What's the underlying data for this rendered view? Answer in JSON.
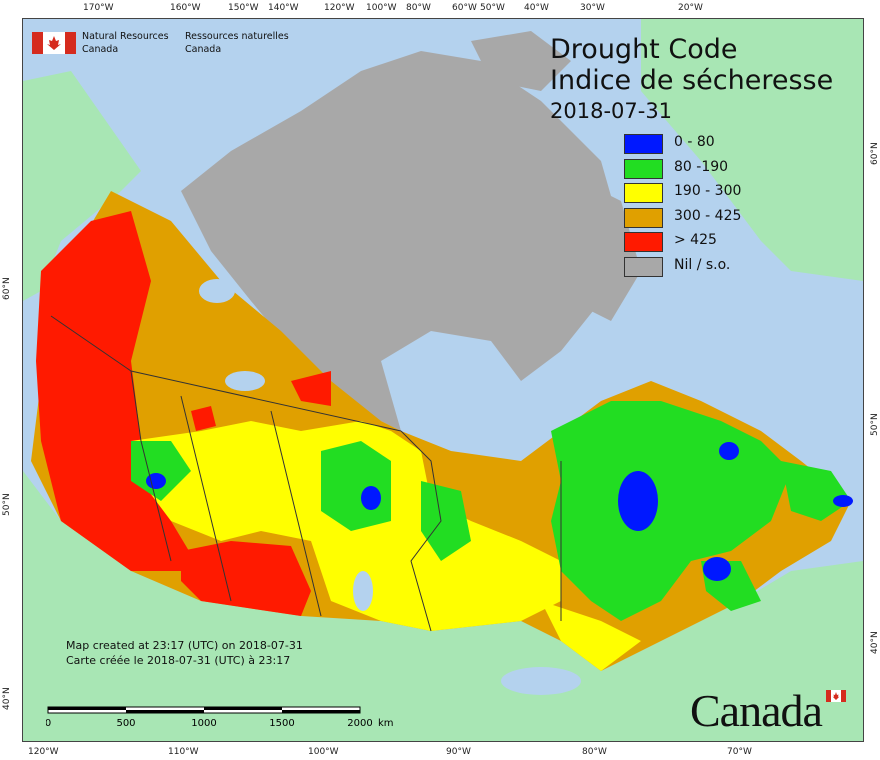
{
  "brand": {
    "name_en_line1": "Natural Resources",
    "name_en_line2": "Canada",
    "name_fr_line1": "Ressources naturelles",
    "name_fr_line2": "Canada"
  },
  "title": {
    "line_en": "Drought Code",
    "line_fr": "Indice de sécheresse",
    "date": "2018-07-31"
  },
  "legend": [
    {
      "label": "0 - 80",
      "color": "#0018ff"
    },
    {
      "label": "80 -190",
      "color": "#22dd22"
    },
    {
      "label": "190 - 300",
      "color": "#ffff00"
    },
    {
      "label": "300 - 425",
      "color": "#e0a000"
    },
    {
      "label": "> 425",
      "color": "#ff1a00"
    },
    {
      "label": "Nil / s.o.",
      "color": "#a8a8a8"
    }
  ],
  "credit": {
    "line_en": "Map created at 23:17 (UTC) on 2018-07-31",
    "line_fr": "Carte créée le 2018-07-31 (UTC) à 23:17"
  },
  "scale": {
    "ticks": [
      "0",
      "500",
      "1000",
      "1500",
      "2000"
    ],
    "unit": "km"
  },
  "wordmark": "Canada",
  "graticule": {
    "top": [
      "170°W",
      "160°W",
      "150°W",
      "140°W",
      "120°W",
      "100°W",
      "80°W",
      "60°W",
      "50°W",
      "40°W",
      "30°W",
      "20°W"
    ],
    "bottom": [
      "120°W",
      "110°W",
      "100°W",
      "90°W",
      "80°W",
      "70°W"
    ],
    "left": [
      "60°N",
      "50°N",
      "40°N"
    ],
    "right": [
      "60°N",
      "50°N",
      "40°N"
    ]
  },
  "colors": {
    "ocean": "#b4d2ee",
    "land_other": "#a8e6b4",
    "nil": "#a8a8a8",
    "boundary": "#333333"
  }
}
